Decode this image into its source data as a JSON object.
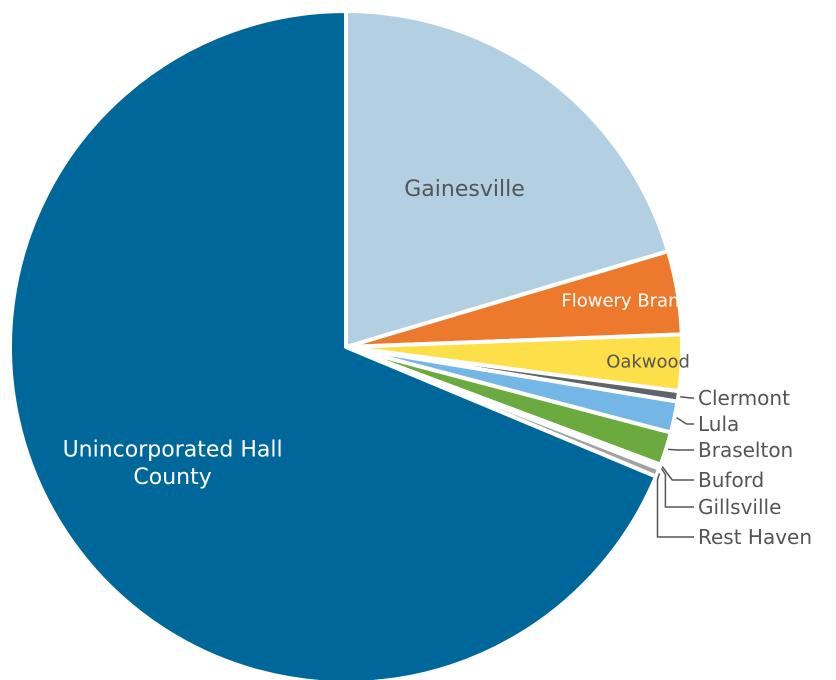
{
  "chart_data": {
    "type": "pie",
    "title": "",
    "start_angle_deg": 0,
    "direction": "clockwise",
    "slices": [
      {
        "label": "Gainesville",
        "value": 20.4,
        "color": "#b3d0e3",
        "label_style": "inside",
        "label_color": "#555555"
      },
      {
        "label": "Flowery Branch",
        "value": 4.0,
        "color": "#ed7a2c",
        "label_style": "inside",
        "label_color": "#ffffff"
      },
      {
        "label": "Oakwood",
        "value": 2.7,
        "color": "#fddf4a",
        "label_style": "inside",
        "label_color": "#555555"
      },
      {
        "label": "Clermont",
        "value": 0.5,
        "color": "#5e6468",
        "label_style": "callout"
      },
      {
        "label": "Lula",
        "value": 1.5,
        "color": "#74b6e6",
        "label_style": "callout"
      },
      {
        "label": "Braselton",
        "value": 1.6,
        "color": "#6aaa3e",
        "label_style": "callout"
      },
      {
        "label": "Buford",
        "value": 0.1,
        "color": "#2e6c93",
        "label_style": "callout"
      },
      {
        "label": "Gillsville",
        "value": 0.1,
        "color": "#3f7ea7",
        "label_style": "callout"
      },
      {
        "label": "Rest Haven",
        "value": 0.4,
        "color": "#a2a2a2",
        "label_style": "callout"
      },
      {
        "label": "Unincorporated Hall County",
        "display_lines": [
          "Unincorporated Hall",
          "County"
        ],
        "value": 68.7,
        "color": "#00679a",
        "label_style": "inside",
        "label_color": "#ffffff"
      }
    ]
  }
}
